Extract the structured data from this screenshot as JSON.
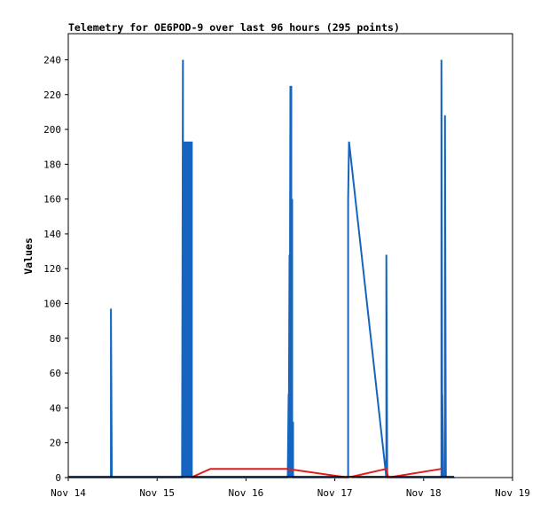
{
  "chart_data": {
    "type": "line",
    "title": "Telemetry for OE6POD-9 over last 96 hours (295 points)",
    "xlabel": "",
    "ylabel": "Values",
    "x_ticks": [
      "Nov 14",
      "Nov 15",
      "Nov 16",
      "Nov 17",
      "Nov 18",
      "Nov 19"
    ],
    "y_ticks": [
      "0",
      "20",
      "40",
      "60",
      "80",
      "100",
      "120",
      "140",
      "160",
      "180",
      "200",
      "220",
      "240"
    ],
    "xlim": [
      14,
      19
    ],
    "ylim": [
      0,
      255
    ],
    "grid": false,
    "legend": "none",
    "series": [
      {
        "color": "#1565c0",
        "x": [
          14.0,
          14.48,
          14.48,
          14.49,
          15.28,
          15.29,
          15.29,
          15.3,
          15.3,
          15.31,
          15.31,
          15.32,
          15.32,
          15.33,
          15.33,
          15.34,
          15.34,
          15.35,
          15.35,
          15.36,
          15.36,
          15.37,
          15.37,
          15.38,
          15.38,
          15.39,
          15.39,
          15.4,
          16.47,
          16.48,
          16.48,
          16.49,
          16.49,
          16.5,
          16.5,
          16.51,
          16.51,
          16.52,
          16.52,
          16.53,
          16.53,
          16.54,
          17.15,
          17.15,
          17.16,
          17.58,
          17.58,
          17.59,
          18.2,
          18.2,
          18.21,
          18.21,
          18.22,
          18.24,
          18.24,
          18.25,
          18.35
        ],
        "y": [
          0,
          0,
          97,
          0,
          0,
          240,
          0,
          177,
          0,
          193,
          25,
          120,
          0,
          193,
          72,
          168,
          0,
          193,
          25,
          128,
          0,
          193,
          20,
          128,
          0,
          193,
          0,
          0,
          0,
          48,
          0,
          128,
          0,
          225,
          0,
          225,
          0,
          160,
          0,
          32,
          0,
          0,
          0,
          160,
          193,
          0,
          128,
          0,
          0,
          240,
          0,
          48,
          0,
          0,
          208,
          0,
          0
        ]
      },
      {
        "color": "#e21b1b",
        "x": [
          15.38,
          15.6,
          16.47,
          17.15,
          17.58,
          17.6,
          18.2
        ],
        "y": [
          0,
          5,
          5,
          0,
          5,
          0,
          5
        ]
      }
    ]
  }
}
